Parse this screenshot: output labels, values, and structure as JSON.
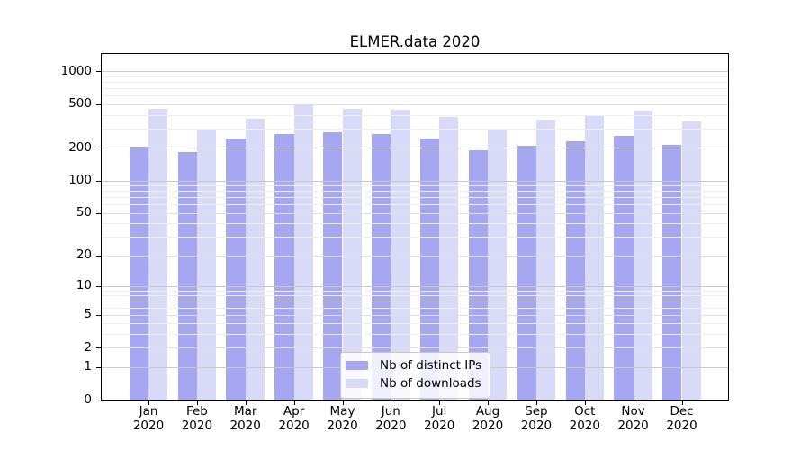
{
  "chart_data": {
    "type": "bar",
    "title": "ELMER.data 2020",
    "x_year": "2020",
    "categories": [
      "Jan",
      "Feb",
      "Mar",
      "Apr",
      "May",
      "Jun",
      "Jul",
      "Aug",
      "Sep",
      "Oct",
      "Nov",
      "Dec"
    ],
    "series": [
      {
        "name": "Nb of distinct IPs",
        "color": "#a6a6f1",
        "values": [
          206,
          183,
          244,
          269,
          276,
          269,
          241,
          189,
          208,
          228,
          256,
          212
        ]
      },
      {
        "name": "Nb of downloads",
        "color": "#d9d9f8",
        "values": [
          455,
          296,
          370,
          494,
          458,
          447,
          386,
          302,
          360,
          388,
          441,
          347
        ]
      }
    ],
    "y_scale": "log1p",
    "ylim": [
      0,
      1440
    ],
    "y_ticks": [
      0,
      1,
      2,
      5,
      10,
      20,
      50,
      100,
      200,
      500,
      1000
    ],
    "y_gridlines_major": [
      1,
      10,
      100,
      1000
    ],
    "y_gridlines_mid": [
      2,
      5,
      20,
      50,
      200,
      500
    ],
    "y_gridlines_minor": [
      3,
      4,
      6,
      7,
      8,
      9,
      30,
      40,
      60,
      70,
      80,
      90,
      300,
      400,
      600,
      700,
      800,
      900
    ],
    "grid": "horizontal, drawn above bars",
    "legend_position": "lower center"
  }
}
